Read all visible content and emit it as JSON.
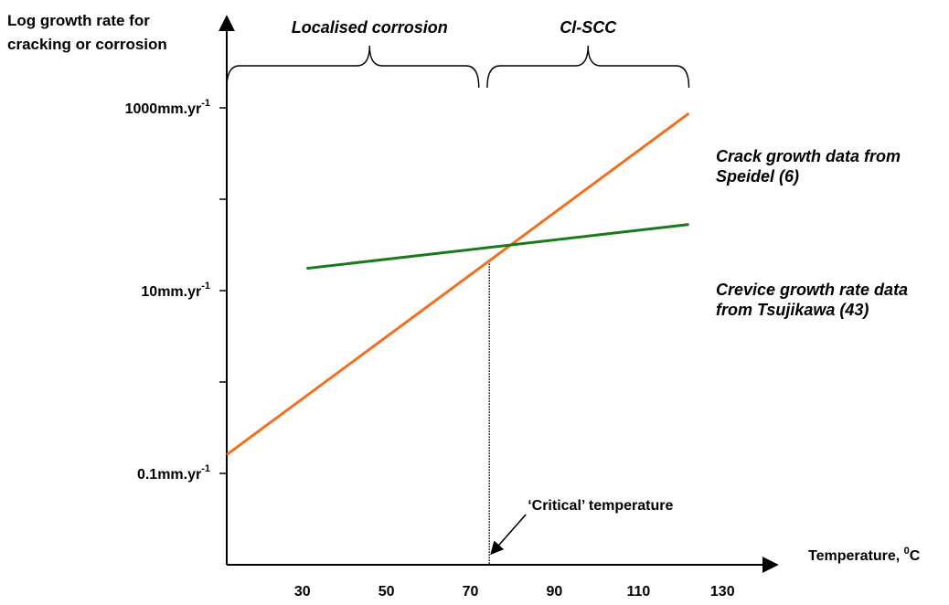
{
  "chart_data": {
    "type": "line",
    "ylabel_lines": [
      "Log growth rate for",
      "cracking or corrosion"
    ],
    "xlabel": "Temperature, ",
    "xlabel_unit_sup": "0",
    "xlabel_unit": "C",
    "x_ticks": [
      30,
      50,
      70,
      90,
      110,
      130
    ],
    "x_range": [
      12,
      143
    ],
    "y_scale": "log",
    "y_range": [
      0.01,
      10000
    ],
    "y_tick_labels": [
      {
        "value": 1000,
        "text": "1000mm.yr",
        "sup": "-1"
      },
      {
        "value": 10,
        "text": "10mm.yr",
        "sup": "-1"
      },
      {
        "value": 0.1,
        "text": "0.1mm.yr",
        "sup": "-1"
      }
    ],
    "y_minor_ticks": [
      100,
      1
    ],
    "regions": [
      {
        "label": "Localised corrosion",
        "from": 12,
        "to": 72,
        "peak": 46
      },
      {
        "label": "Cl-SCC",
        "from": 74,
        "to": 122,
        "peak": 98
      }
    ],
    "series": [
      {
        "points": [
          [
            12,
            0.16
          ],
          [
            122,
            870
          ]
        ],
        "color": "#f07020",
        "label_lines": [
          "Crack growth data from",
          "Speidel (6)"
        ]
      },
      {
        "points": [
          [
            31,
            17.5
          ],
          [
            122,
            53
          ]
        ],
        "color": "#1a7a1a",
        "label_lines": [
          "Crevice growth rate data",
          "from Tsujikawa (43)"
        ]
      }
    ],
    "critical_temperature": {
      "x": 74.5,
      "label": "‘Critical’ temperature"
    }
  }
}
